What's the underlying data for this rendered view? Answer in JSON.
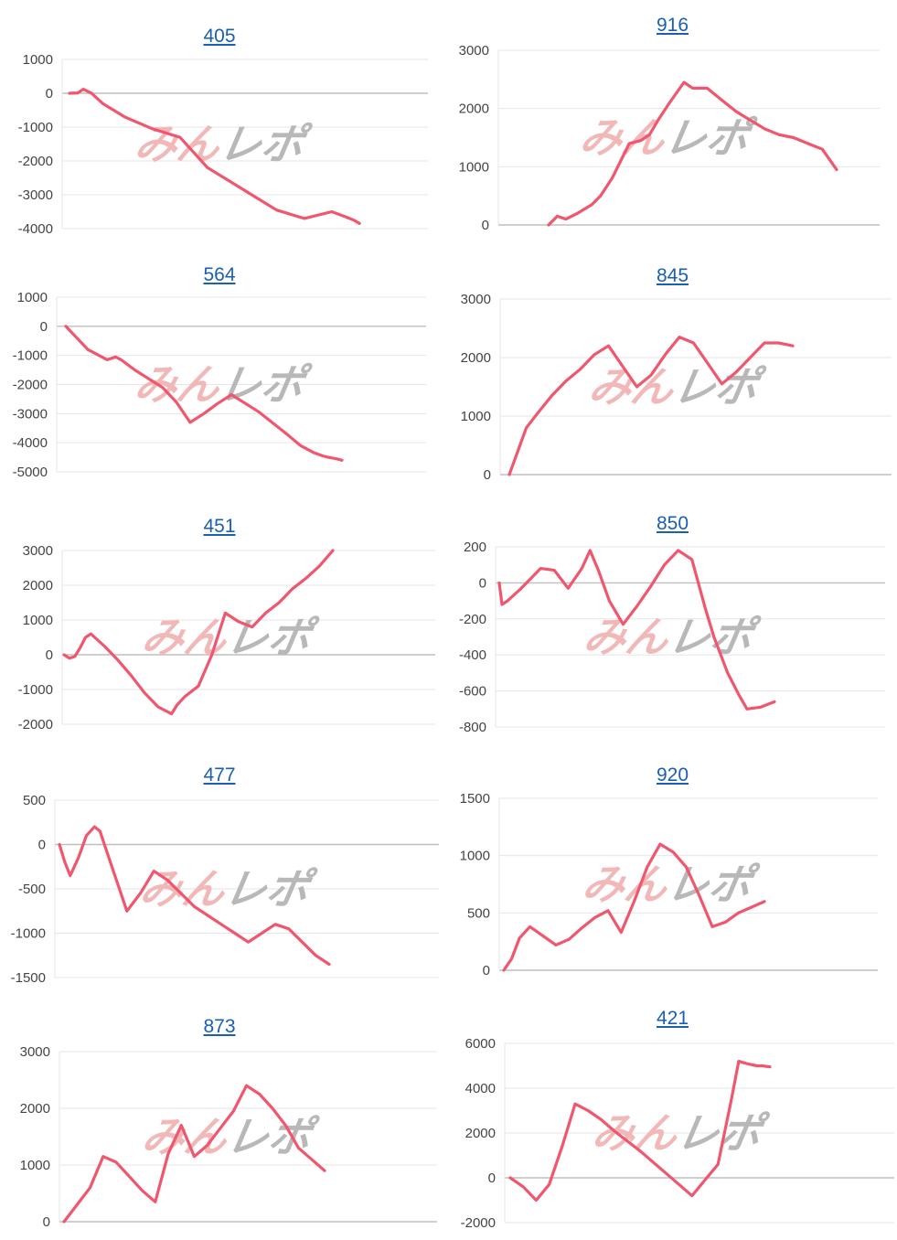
{
  "colors": {
    "line": "#f0566e",
    "grid": "#e6e6e6",
    "zero_line": "#bfbfbf",
    "title_link": "#1a5fb4",
    "watermark_pink": "#f2b8b8",
    "watermark_gray": "#b8b8b8"
  },
  "watermark": "みんレポ",
  "chart_data": [
    {
      "type": "line",
      "title": "405",
      "ylim": [
        -4000,
        1000
      ],
      "yticks": [
        1000,
        0,
        -1000,
        -2000,
        -3000,
        -4000
      ],
      "grid": true,
      "x": [
        0,
        3,
        5,
        8,
        12,
        20,
        30,
        40,
        50,
        55,
        60,
        68,
        75,
        85,
        95,
        100,
        103,
        105
      ],
      "y": [
        0,
        10,
        120,
        0,
        -300,
        -700,
        -1050,
        -1300,
        -2200,
        -2450,
        -2700,
        -3100,
        -3450,
        -3700,
        -3500,
        -3650,
        -3750,
        -3850
      ]
    },
    {
      "type": "line",
      "title": "916",
      "ylim": [
        0,
        3000
      ],
      "yticks": [
        3000,
        2000,
        1000,
        0
      ],
      "grid": true,
      "x": [
        0,
        3,
        6,
        10,
        15,
        18,
        22,
        25,
        28,
        32,
        35,
        38,
        42,
        47,
        50,
        55,
        60,
        65,
        70,
        75,
        80,
        85,
        90,
        95,
        100
      ],
      "y": [
        0,
        150,
        100,
        200,
        350,
        500,
        800,
        1100,
        1400,
        1450,
        1550,
        1800,
        2100,
        2450,
        2350,
        2350,
        2150,
        1950,
        1800,
        1650,
        1550,
        1500,
        1400,
        1300,
        950
      ]
    },
    {
      "type": "line",
      "title": "564",
      "ylim": [
        -5000,
        1000
      ],
      "yticks": [
        1000,
        0,
        -1000,
        -2000,
        -3000,
        -4000,
        -5000
      ],
      "grid": true,
      "x": [
        0,
        8,
        15,
        18,
        20,
        25,
        35,
        40,
        45,
        50,
        55,
        60,
        70,
        80,
        85,
        90,
        93,
        95,
        98,
        100
      ],
      "y": [
        0,
        -800,
        -1150,
        -1050,
        -1150,
        -1500,
        -2100,
        -2600,
        -3300,
        -3000,
        -2650,
        -2350,
        -2950,
        -3700,
        -4100,
        -4350,
        -4450,
        -4500,
        -4550,
        -4600
      ]
    },
    {
      "type": "line",
      "title": "845",
      "ylim": [
        0,
        3000
      ],
      "yticks": [
        3000,
        2000,
        1000,
        0
      ],
      "grid": true,
      "x": [
        0,
        3,
        6,
        10,
        15,
        20,
        25,
        30,
        35,
        40,
        45,
        50,
        55,
        60,
        65,
        70,
        75,
        80,
        85,
        90,
        95,
        100
      ],
      "y": [
        0,
        400,
        800,
        1050,
        1350,
        1600,
        1800,
        2050,
        2200,
        1850,
        1500,
        1700,
        2050,
        2350,
        2250,
        1900,
        1550,
        1750,
        2000,
        2250,
        2250,
        2200
      ]
    },
    {
      "type": "line",
      "title": "451",
      "ylim": [
        -2000,
        3000
      ],
      "yticks": [
        3000,
        2000,
        1000,
        0,
        -1000,
        -2000
      ],
      "grid": true,
      "x": [
        0,
        2,
        4,
        6,
        8,
        10,
        15,
        20,
        25,
        30,
        35,
        40,
        42,
        45,
        50,
        55,
        60,
        65,
        70,
        75,
        80,
        85,
        90,
        95,
        100
      ],
      "y": [
        0,
        -100,
        -50,
        200,
        500,
        600,
        250,
        -150,
        -600,
        -1100,
        -1500,
        -1700,
        -1450,
        -1200,
        -900,
        0,
        1200,
        950,
        800,
        1200,
        1500,
        1900,
        2200,
        2550,
        3000
      ]
    },
    {
      "type": "line",
      "title": "850",
      "ylim": [
        -800,
        200
      ],
      "yticks": [
        200,
        0,
        -200,
        -400,
        -600,
        -800
      ],
      "grid": true,
      "x": [
        0,
        1,
        3,
        8,
        15,
        20,
        25,
        30,
        33,
        36,
        40,
        45,
        50,
        55,
        60,
        65,
        70,
        75,
        78,
        80,
        83,
        87,
        90,
        95,
        100
      ],
      "y": [
        0,
        -120,
        -100,
        -30,
        80,
        70,
        -30,
        80,
        180,
        70,
        -100,
        -230,
        -130,
        -20,
        100,
        180,
        130,
        -150,
        -300,
        -380,
        -500,
        -620,
        -700,
        -690,
        -660
      ]
    },
    {
      "type": "line",
      "title": "477",
      "ylim": [
        -1500,
        500
      ],
      "yticks": [
        500,
        0,
        -500,
        -1000,
        -1500
      ],
      "grid": true,
      "x": [
        0,
        2,
        4,
        7,
        10,
        13,
        15,
        20,
        25,
        30,
        35,
        40,
        45,
        50,
        55,
        60,
        65,
        70,
        75,
        80,
        85,
        90,
        95,
        100
      ],
      "y": [
        0,
        -200,
        -350,
        -150,
        100,
        200,
        150,
        -300,
        -750,
        -550,
        -300,
        -400,
        -550,
        -700,
        -800,
        -900,
        -1000,
        -1100,
        -1000,
        -900,
        -950,
        -1100,
        -1250,
        -1350
      ]
    },
    {
      "type": "line",
      "title": "920",
      "ylim": [
        0,
        1500
      ],
      "yticks": [
        1500,
        1000,
        500,
        0
      ],
      "grid": true,
      "x": [
        0,
        3,
        6,
        10,
        15,
        20,
        25,
        30,
        35,
        40,
        45,
        50,
        55,
        60,
        65,
        70,
        75,
        80,
        85,
        90,
        95,
        100
      ],
      "y": [
        0,
        100,
        280,
        380,
        300,
        220,
        270,
        370,
        460,
        520,
        330,
        600,
        900,
        1100,
        1030,
        900,
        650,
        380,
        420,
        500,
        550,
        600
      ]
    },
    {
      "type": "line",
      "title": "873",
      "ylim": [
        0,
        3000
      ],
      "yticks": [
        3000,
        2000,
        1000,
        0
      ],
      "grid": true,
      "x": [
        0,
        5,
        10,
        15,
        20,
        25,
        30,
        35,
        40,
        45,
        50,
        55,
        60,
        65,
        70,
        75,
        80,
        85,
        90,
        95,
        100
      ],
      "y": [
        0,
        300,
        600,
        1150,
        1050,
        800,
        550,
        350,
        1200,
        1700,
        1150,
        1350,
        1650,
        1950,
        2400,
        2250,
        2000,
        1700,
        1300,
        1100,
        900
      ]
    },
    {
      "type": "line",
      "title": "421",
      "ylim": [
        -2000,
        6000
      ],
      "yticks": [
        6000,
        4000,
        2000,
        0,
        -2000
      ],
      "grid": true,
      "x": [
        0,
        5,
        10,
        15,
        20,
        25,
        30,
        35,
        40,
        50,
        60,
        70,
        75,
        80,
        85,
        88,
        91,
        93,
        95,
        97,
        100
      ],
      "y": [
        0,
        -400,
        -1000,
        -300,
        1400,
        3300,
        3000,
        2600,
        2100,
        1200,
        200,
        -800,
        -100,
        600,
        3400,
        5200,
        5100,
        5050,
        5000,
        5000,
        4950
      ]
    }
  ]
}
